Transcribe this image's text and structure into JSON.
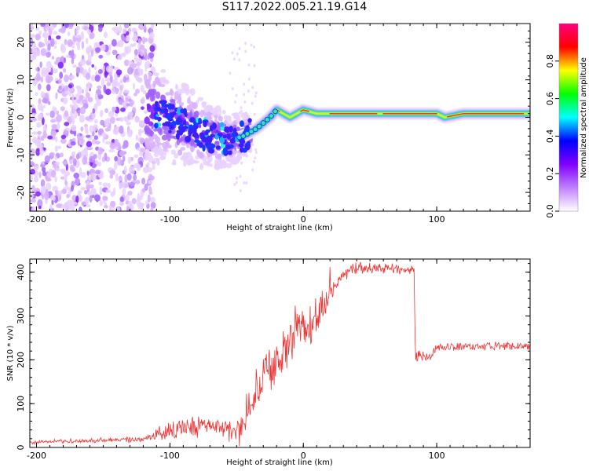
{
  "title": "S117.2022.005.21.19.G14",
  "chart_data": [
    {
      "type": "heatmap",
      "xlabel": "Height of straight line (km)",
      "ylabel": "Frequency (Hz)",
      "xlim": [
        -205,
        170
      ],
      "ylim": [
        -25,
        25
      ],
      "x_ticks": [
        -200,
        -100,
        0,
        100
      ],
      "y_ticks": [
        -20,
        -10,
        0,
        10,
        20
      ],
      "colorbar": {
        "label": "Normalized spectral amplitude",
        "range": [
          0,
          1
        ],
        "ticks": [
          "0.0",
          "0.2",
          "0.4",
          "0.6",
          "0.8"
        ],
        "colors": [
          "#ffffff",
          "#c080ff",
          "#8000ff",
          "#0000ff",
          "#00ffff",
          "#00ff00",
          "#ffff00",
          "#ff0000",
          "#ff0080"
        ]
      },
      "ridge": [
        {
          "x": -110,
          "f": 1
        },
        {
          "x": -90,
          "f": -2
        },
        {
          "x": -70,
          "f": -5
        },
        {
          "x": -55,
          "f": -6
        },
        {
          "x": -45,
          "f": -5
        },
        {
          "x": -35,
          "f": -3
        },
        {
          "x": -25,
          "f": 0
        },
        {
          "x": -20,
          "f": 2
        },
        {
          "x": -10,
          "f": 0
        },
        {
          "x": 0,
          "f": 2
        },
        {
          "x": 10,
          "f": 1
        },
        {
          "x": 40,
          "f": 1
        },
        {
          "x": 100,
          "f": 1
        },
        {
          "x": 106,
          "f": 0
        },
        {
          "x": 120,
          "f": 1
        },
        {
          "x": 170,
          "f": 1
        }
      ]
    },
    {
      "type": "line",
      "xlabel": "Height of straight line (km)",
      "ylabel": "SNR (10 * v/v)",
      "xlim": [
        -205,
        170
      ],
      "ylim": [
        0,
        430
      ],
      "x_ticks": [
        -200,
        -100,
        0,
        100
      ],
      "y_ticks": [
        0,
        100,
        200,
        300,
        400
      ],
      "color": "#ee3333",
      "trend": [
        {
          "x": -205,
          "y": 12
        },
        {
          "x": -120,
          "y": 18
        },
        {
          "x": -110,
          "y": 30
        },
        {
          "x": -100,
          "y": 40
        },
        {
          "x": -80,
          "y": 50
        },
        {
          "x": -60,
          "y": 45
        },
        {
          "x": -50,
          "y": 35
        },
        {
          "x": -40,
          "y": 80
        },
        {
          "x": -30,
          "y": 170
        },
        {
          "x": -20,
          "y": 190
        },
        {
          "x": -10,
          "y": 250
        },
        {
          "x": 0,
          "y": 280
        },
        {
          "x": 10,
          "y": 290
        },
        {
          "x": 20,
          "y": 350
        },
        {
          "x": 30,
          "y": 395
        },
        {
          "x": 40,
          "y": 410
        },
        {
          "x": 60,
          "y": 410
        },
        {
          "x": 83,
          "y": 405
        },
        {
          "x": 84,
          "y": 210
        },
        {
          "x": 95,
          "y": 205
        },
        {
          "x": 100,
          "y": 230
        },
        {
          "x": 170,
          "y": 232
        }
      ],
      "noise": [
        {
          "x": -205,
          "y": 5
        },
        {
          "x": -120,
          "y": 8
        },
        {
          "x": -100,
          "y": 30
        },
        {
          "x": -50,
          "y": 30
        },
        {
          "x": -40,
          "y": 40
        },
        {
          "x": -20,
          "y": 60
        },
        {
          "x": 0,
          "y": 60
        },
        {
          "x": 20,
          "y": 40
        },
        {
          "x": 30,
          "y": 18
        },
        {
          "x": 83,
          "y": 12
        },
        {
          "x": 84,
          "y": 15
        },
        {
          "x": 100,
          "y": 12
        },
        {
          "x": 170,
          "y": 10
        }
      ]
    }
  ]
}
